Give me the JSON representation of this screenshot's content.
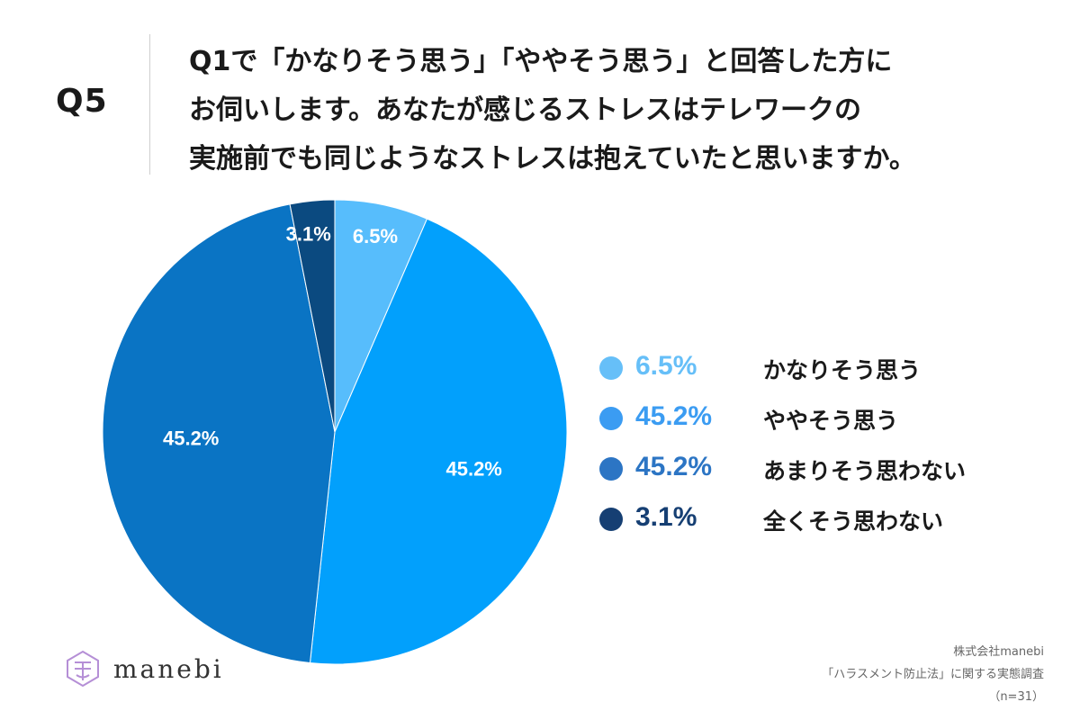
{
  "question_number": "Q5",
  "question_lines": [
    "Q1で「かなりそう思う」「ややそう思う」と回答した方に",
    "お伺いします。あなたが感じるストレスはテレワークの",
    "実施前でも同じようなストレスは抱えていたと思いますか。"
  ],
  "chart_data": {
    "type": "pie",
    "categories": [
      "かなりそう思う",
      "ややそう思う",
      "あまりそう思わない",
      "全くそう思わない"
    ],
    "values": [
      6.5,
      45.2,
      45.2,
      3.1
    ],
    "value_labels": [
      "6.5%",
      "45.2%",
      "45.2%",
      "3.1%"
    ],
    "colors": [
      "#57bdfc",
      "#02a0fc",
      "#0a74c4",
      "#0b4a80"
    ],
    "legend_colors": [
      "#66bff8",
      "#3b9cf2",
      "#2c75c4",
      "#163f73"
    ],
    "start_angle_deg": 0,
    "direction": "clockwise",
    "legend_position": "right"
  },
  "brand": {
    "logo_text": "manebi"
  },
  "source": {
    "company": "株式会社manebi",
    "survey": "「ハラスメント防止法」に関する実態調査",
    "sample": "（n=31）"
  }
}
